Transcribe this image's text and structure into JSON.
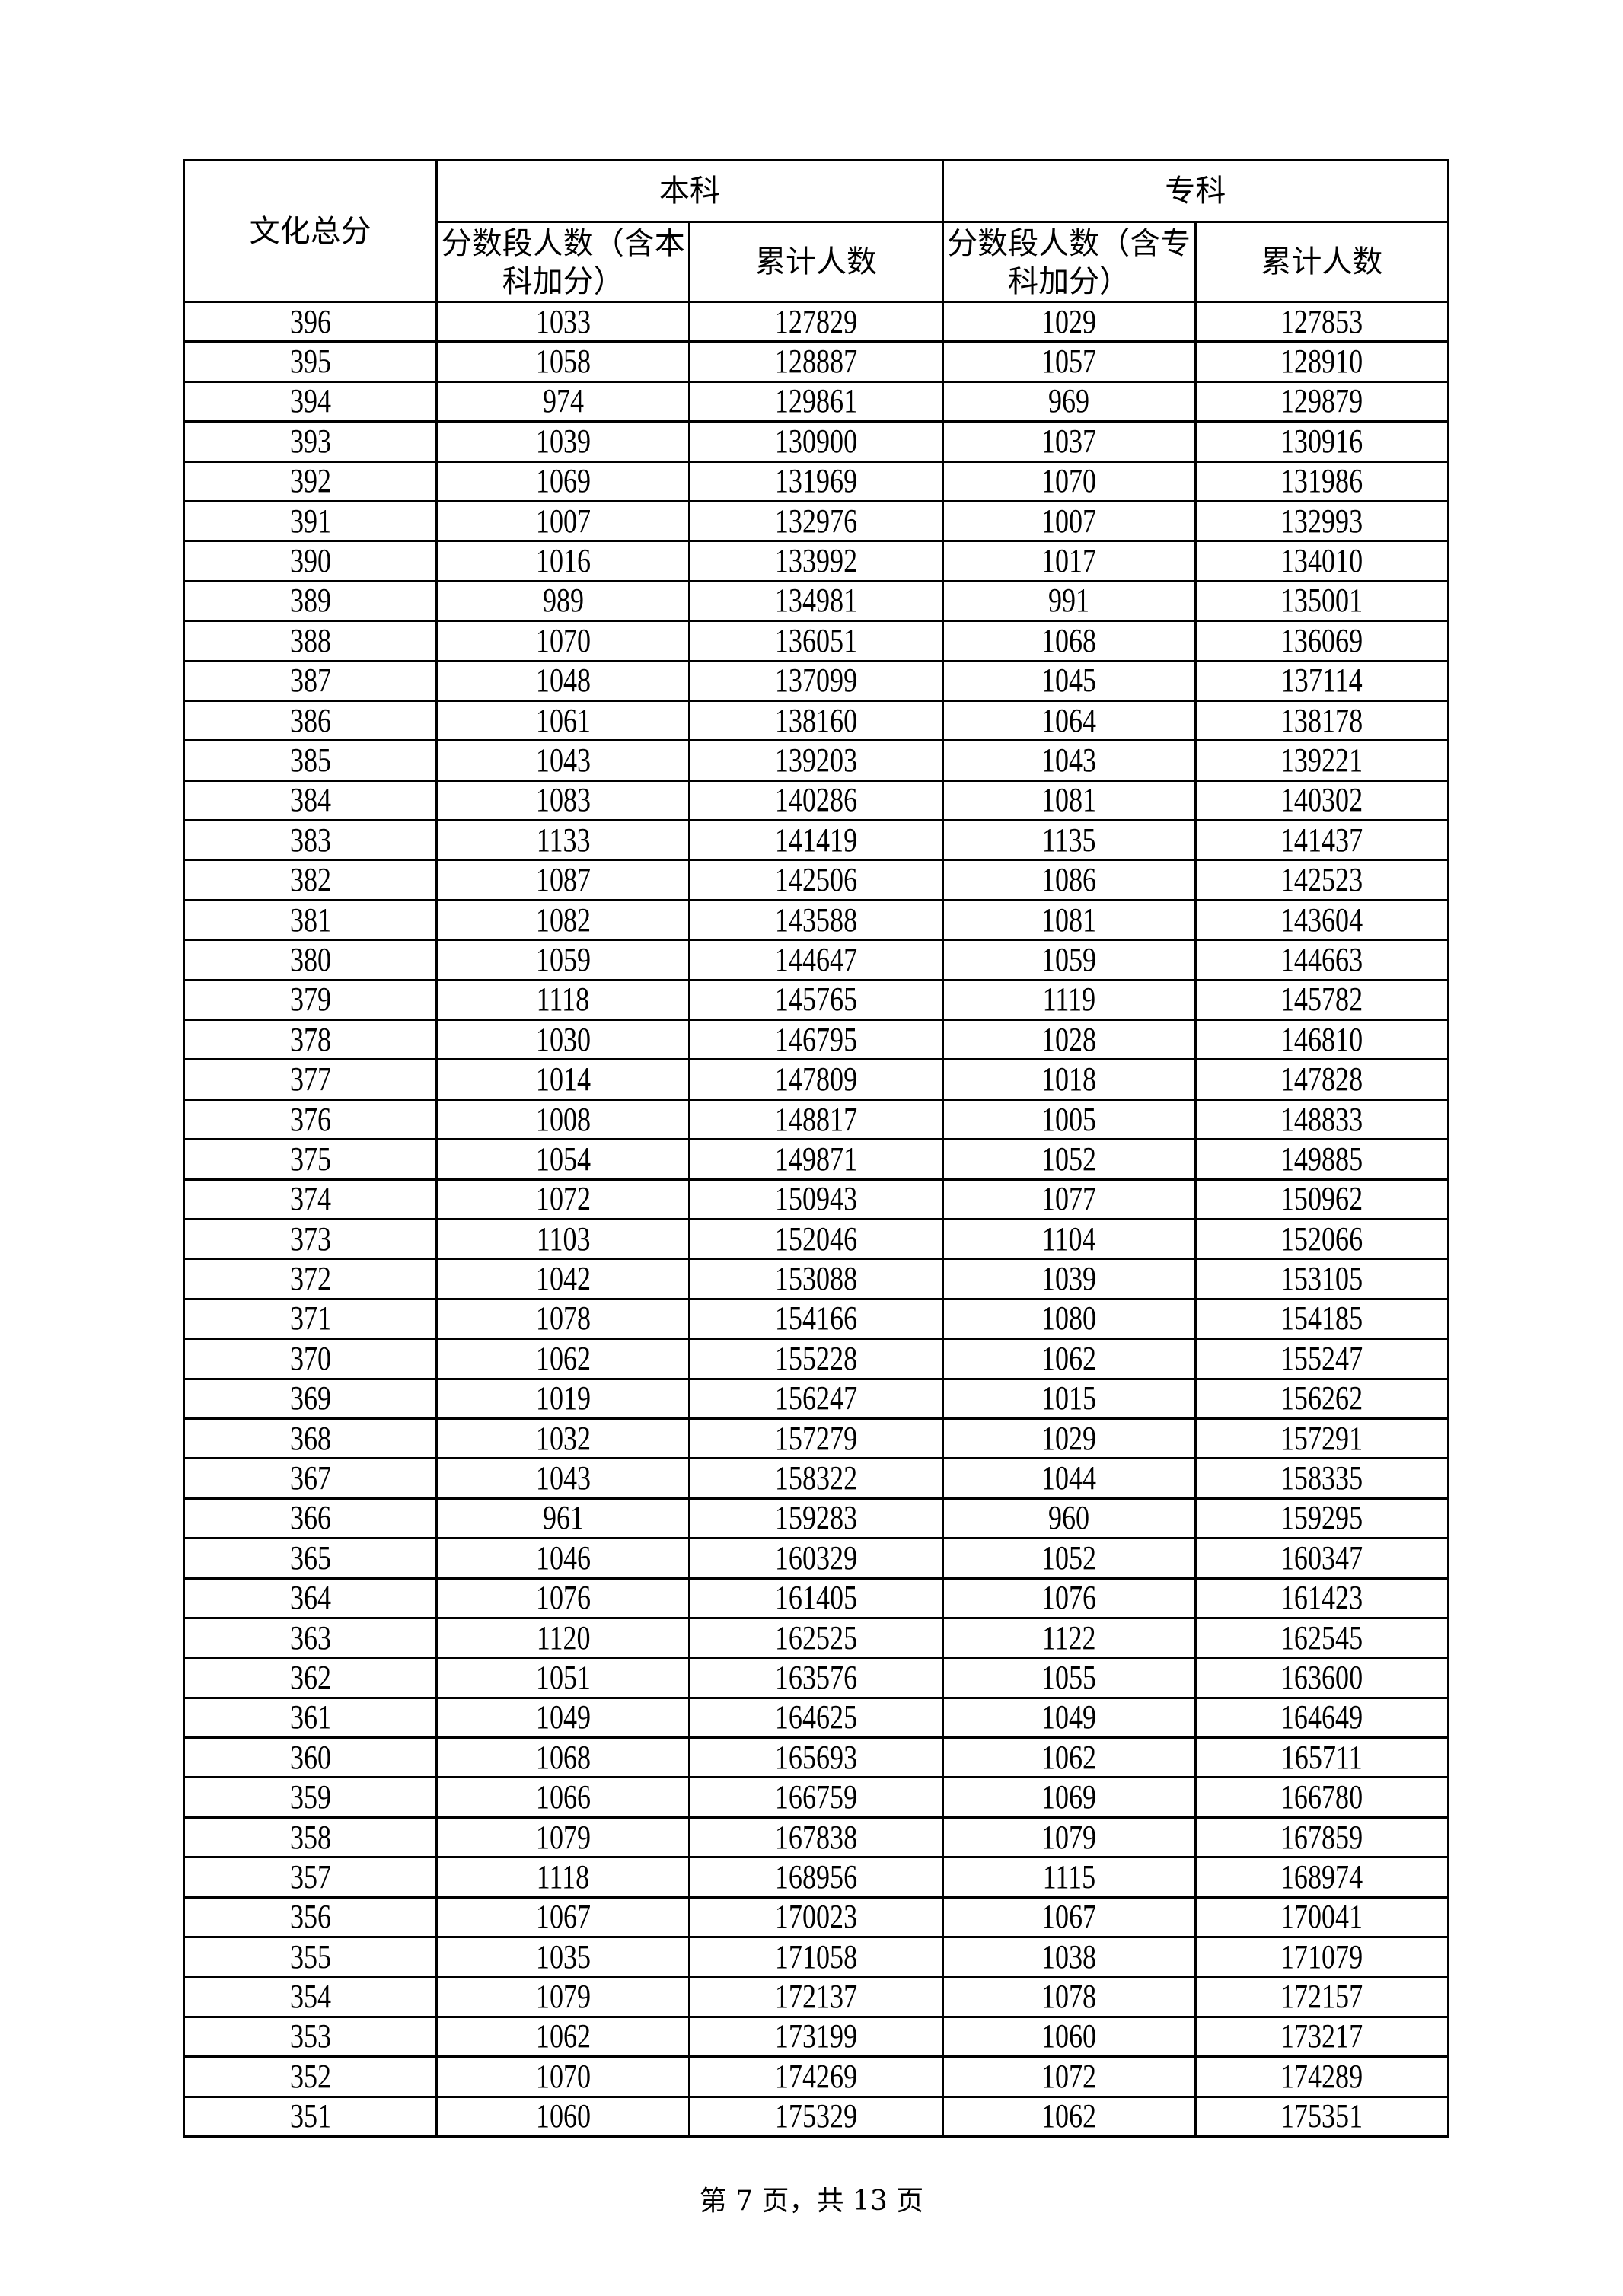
{
  "table": {
    "headers": {
      "score": "文化总分",
      "undergrad": "本科",
      "college": "专科",
      "undergrad_segment": "分数段人数（含本科加分）",
      "undergrad_cumulative": "累计人数",
      "college_segment": "分数段人数（含专科加分）",
      "college_cumulative": "累计人数"
    },
    "rows": [
      [
        "396",
        "1033",
        "127829",
        "1029",
        "127853"
      ],
      [
        "395",
        "1058",
        "128887",
        "1057",
        "128910"
      ],
      [
        "394",
        "974",
        "129861",
        "969",
        "129879"
      ],
      [
        "393",
        "1039",
        "130900",
        "1037",
        "130916"
      ],
      [
        "392",
        "1069",
        "131969",
        "1070",
        "131986"
      ],
      [
        "391",
        "1007",
        "132976",
        "1007",
        "132993"
      ],
      [
        "390",
        "1016",
        "133992",
        "1017",
        "134010"
      ],
      [
        "389",
        "989",
        "134981",
        "991",
        "135001"
      ],
      [
        "388",
        "1070",
        "136051",
        "1068",
        "136069"
      ],
      [
        "387",
        "1048",
        "137099",
        "1045",
        "137114"
      ],
      [
        "386",
        "1061",
        "138160",
        "1064",
        "138178"
      ],
      [
        "385",
        "1043",
        "139203",
        "1043",
        "139221"
      ],
      [
        "384",
        "1083",
        "140286",
        "1081",
        "140302"
      ],
      [
        "383",
        "1133",
        "141419",
        "1135",
        "141437"
      ],
      [
        "382",
        "1087",
        "142506",
        "1086",
        "142523"
      ],
      [
        "381",
        "1082",
        "143588",
        "1081",
        "143604"
      ],
      [
        "380",
        "1059",
        "144647",
        "1059",
        "144663"
      ],
      [
        "379",
        "1118",
        "145765",
        "1119",
        "145782"
      ],
      [
        "378",
        "1030",
        "146795",
        "1028",
        "146810"
      ],
      [
        "377",
        "1014",
        "147809",
        "1018",
        "147828"
      ],
      [
        "376",
        "1008",
        "148817",
        "1005",
        "148833"
      ],
      [
        "375",
        "1054",
        "149871",
        "1052",
        "149885"
      ],
      [
        "374",
        "1072",
        "150943",
        "1077",
        "150962"
      ],
      [
        "373",
        "1103",
        "152046",
        "1104",
        "152066"
      ],
      [
        "372",
        "1042",
        "153088",
        "1039",
        "153105"
      ],
      [
        "371",
        "1078",
        "154166",
        "1080",
        "154185"
      ],
      [
        "370",
        "1062",
        "155228",
        "1062",
        "155247"
      ],
      [
        "369",
        "1019",
        "156247",
        "1015",
        "156262"
      ],
      [
        "368",
        "1032",
        "157279",
        "1029",
        "157291"
      ],
      [
        "367",
        "1043",
        "158322",
        "1044",
        "158335"
      ],
      [
        "366",
        "961",
        "159283",
        "960",
        "159295"
      ],
      [
        "365",
        "1046",
        "160329",
        "1052",
        "160347"
      ],
      [
        "364",
        "1076",
        "161405",
        "1076",
        "161423"
      ],
      [
        "363",
        "1120",
        "162525",
        "1122",
        "162545"
      ],
      [
        "362",
        "1051",
        "163576",
        "1055",
        "163600"
      ],
      [
        "361",
        "1049",
        "164625",
        "1049",
        "164649"
      ],
      [
        "360",
        "1068",
        "165693",
        "1062",
        "165711"
      ],
      [
        "359",
        "1066",
        "166759",
        "1069",
        "166780"
      ],
      [
        "358",
        "1079",
        "167838",
        "1079",
        "167859"
      ],
      [
        "357",
        "1118",
        "168956",
        "1115",
        "168974"
      ],
      [
        "356",
        "1067",
        "170023",
        "1067",
        "170041"
      ],
      [
        "355",
        "1035",
        "171058",
        "1038",
        "171079"
      ],
      [
        "354",
        "1079",
        "172137",
        "1078",
        "172157"
      ],
      [
        "353",
        "1062",
        "173199",
        "1060",
        "173217"
      ],
      [
        "352",
        "1070",
        "174269",
        "1072",
        "174289"
      ],
      [
        "351",
        "1060",
        "175329",
        "1062",
        "175351"
      ]
    ]
  },
  "footer": {
    "page_label": "第 7 页，共 13 页"
  }
}
